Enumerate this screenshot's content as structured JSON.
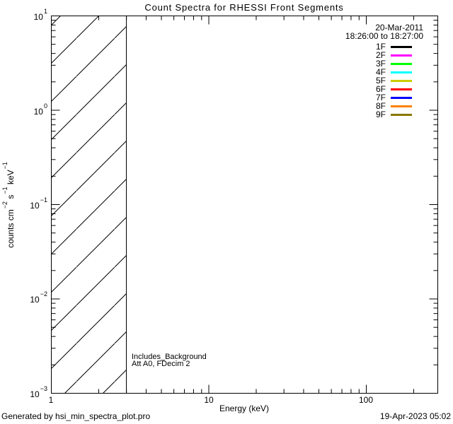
{
  "title": "Count Spectra for RHESSI Front Segments",
  "chart_data": {
    "type": "line",
    "title": "Count Spectra for RHESSI Front Segments",
    "xlabel": "Energy (keV)",
    "ylabel": "counts cm^-2 s^-1 keV^-1",
    "xscale": "log",
    "yscale": "log",
    "xlim": [
      1,
      284
    ],
    "ylim": [
      0.001,
      10
    ],
    "x_major_ticks": [
      1,
      10,
      100
    ],
    "y_major_ticks": [
      10,
      1,
      0.1,
      0.01,
      0.001
    ],
    "grid": false,
    "legend_position": "upper-right",
    "legend_header": [
      "20-Mar-2011",
      "18:26:00 to 18:27:00"
    ],
    "series": [
      {
        "name": "1F",
        "color": "#000000",
        "values": []
      },
      {
        "name": "2F",
        "color": "#FF00FF",
        "values": []
      },
      {
        "name": "3F",
        "color": "#00FF00",
        "values": []
      },
      {
        "name": "4F",
        "color": "#00FFFF",
        "values": []
      },
      {
        "name": "5F",
        "color": "#CCCC00",
        "values": []
      },
      {
        "name": "6F",
        "color": "#FF0000",
        "values": []
      },
      {
        "name": "7F",
        "color": "#0000FF",
        "values": []
      },
      {
        "name": "8F",
        "color": "#FF8000",
        "values": []
      },
      {
        "name": "9F",
        "color": "#887700",
        "values": []
      }
    ],
    "hatched_region": {
      "x_min": 1,
      "x_max": 3,
      "style": "diagonal-hatch"
    },
    "note": "plot area contains no spectra curves; only a diagonally hatched band from 1 to 3 keV",
    "annotations": [
      "Includes_Background",
      "Att A0, FDecim 2"
    ]
  },
  "legend": {
    "date": "20-Mar-2011",
    "time_range": "18:26:00 to 18:27:00",
    "entries": [
      {
        "label": "1F",
        "color": "#000000"
      },
      {
        "label": "2F",
        "color": "#FF00FF"
      },
      {
        "label": "3F",
        "color": "#00FF00"
      },
      {
        "label": "4F",
        "color": "#00FFFF"
      },
      {
        "label": "5F",
        "color": "#CCCC00"
      },
      {
        "label": "6F",
        "color": "#FF0000"
      },
      {
        "label": "7F",
        "color": "#0000FF"
      },
      {
        "label": "8F",
        "color": "#FF8000"
      },
      {
        "label": "9F",
        "color": "#887700"
      }
    ]
  },
  "plot": {
    "xaxis": {
      "label": "Energy (keV)",
      "tick_labels": [
        "1",
        "10",
        "100"
      ]
    },
    "yaxis": {
      "base": "10",
      "tick_exponents": [
        "1",
        "0",
        "−1",
        "−2",
        "−3"
      ]
    },
    "ylabel_parts": {
      "t0": "counts cm",
      "e0": "−2",
      "t1": " s",
      "e1": "−1",
      "t2": " keV",
      "e2": "−1"
    }
  },
  "annotations": {
    "line1": "Includes_Background",
    "line2": "Att A0, FDecim 2"
  },
  "footer": {
    "left": "Generated by hsi_min_spectra_plot.pro",
    "right": "19-Apr-2023 05:02"
  }
}
